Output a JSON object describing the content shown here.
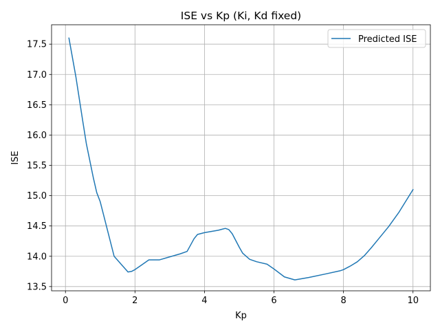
{
  "chart_data": {
    "type": "line",
    "title": "ISE vs Kp (Ki, Kd fixed)",
    "xlabel": "Kp",
    "ylabel": "ISE",
    "xlim": [
      -0.4,
      10.5
    ],
    "ylim": [
      13.43,
      17.82
    ],
    "xticks": [
      0,
      2,
      4,
      6,
      8,
      10
    ],
    "xtick_labels": [
      "0",
      "2",
      "4",
      "6",
      "8",
      "10"
    ],
    "yticks": [
      13.5,
      14.0,
      14.5,
      15.0,
      15.5,
      16.0,
      16.5,
      17.0,
      17.5
    ],
    "ytick_labels": [
      "13.5",
      "14.0",
      "14.5",
      "15.0",
      "15.5",
      "16.0",
      "16.5",
      "17.0",
      "17.5"
    ],
    "grid": true,
    "legend_position": "top-right",
    "series": [
      {
        "name": "Predicted ISE",
        "color": "#1f77b4",
        "x": [
          0.1,
          0.3,
          0.5,
          0.6,
          0.8,
          0.9,
          1.0,
          1.2,
          1.4,
          1.6,
          1.8,
          1.9,
          2.0,
          2.2,
          2.4,
          2.7,
          3.0,
          3.3,
          3.5,
          3.7,
          3.8,
          4.0,
          4.2,
          4.4,
          4.5,
          4.6,
          4.7,
          4.8,
          5.0,
          5.1,
          5.3,
          5.5,
          5.8,
          6.0,
          6.3,
          6.6,
          7.0,
          7.5,
          7.9,
          8.0,
          8.2,
          8.4,
          8.6,
          8.8,
          9.0,
          9.3,
          9.6,
          10.0
        ],
        "y": [
          17.6,
          16.96,
          16.22,
          15.86,
          15.3,
          15.05,
          14.9,
          14.45,
          14.0,
          13.87,
          13.74,
          13.75,
          13.78,
          13.86,
          13.94,
          13.94,
          13.99,
          14.04,
          14.08,
          14.29,
          14.36,
          14.39,
          14.41,
          14.43,
          14.445,
          14.46,
          14.44,
          14.37,
          14.15,
          14.05,
          13.95,
          13.91,
          13.87,
          13.79,
          13.66,
          13.61,
          13.65,
          13.71,
          13.76,
          13.78,
          13.84,
          13.91,
          14.01,
          14.14,
          14.28,
          14.49,
          14.73,
          15.1
        ]
      }
    ]
  }
}
